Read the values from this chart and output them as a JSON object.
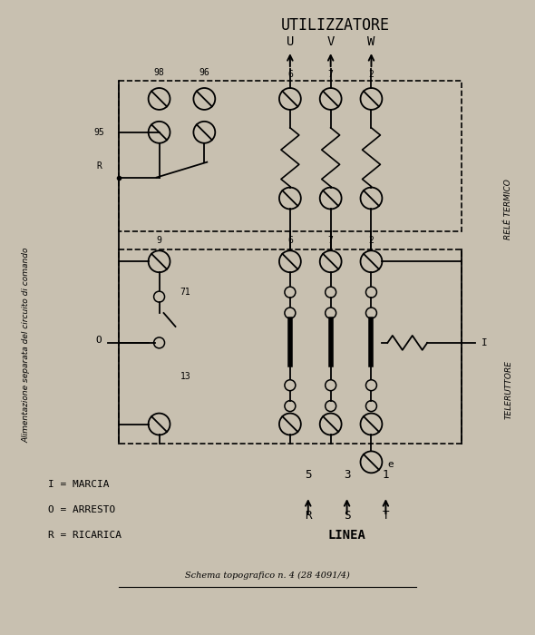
{
  "bg_color": "#c8c0b0",
  "title": "UTILIZZATORE",
  "uvw_labels": [
    "U",
    "V",
    "W"
  ],
  "side_label_left": "Alimentazione separata del circuito di comando",
  "side_label_right_top": "RELÉ TERMICO",
  "side_label_right_bottom": "TELERUTTORE",
  "legend": [
    "I = MARCIA",
    "O = ARRESTO",
    "R = RICARICA"
  ],
  "linea": "LINEA",
  "schema_text": "Schema topografico n. 4 (28 4091/4)"
}
